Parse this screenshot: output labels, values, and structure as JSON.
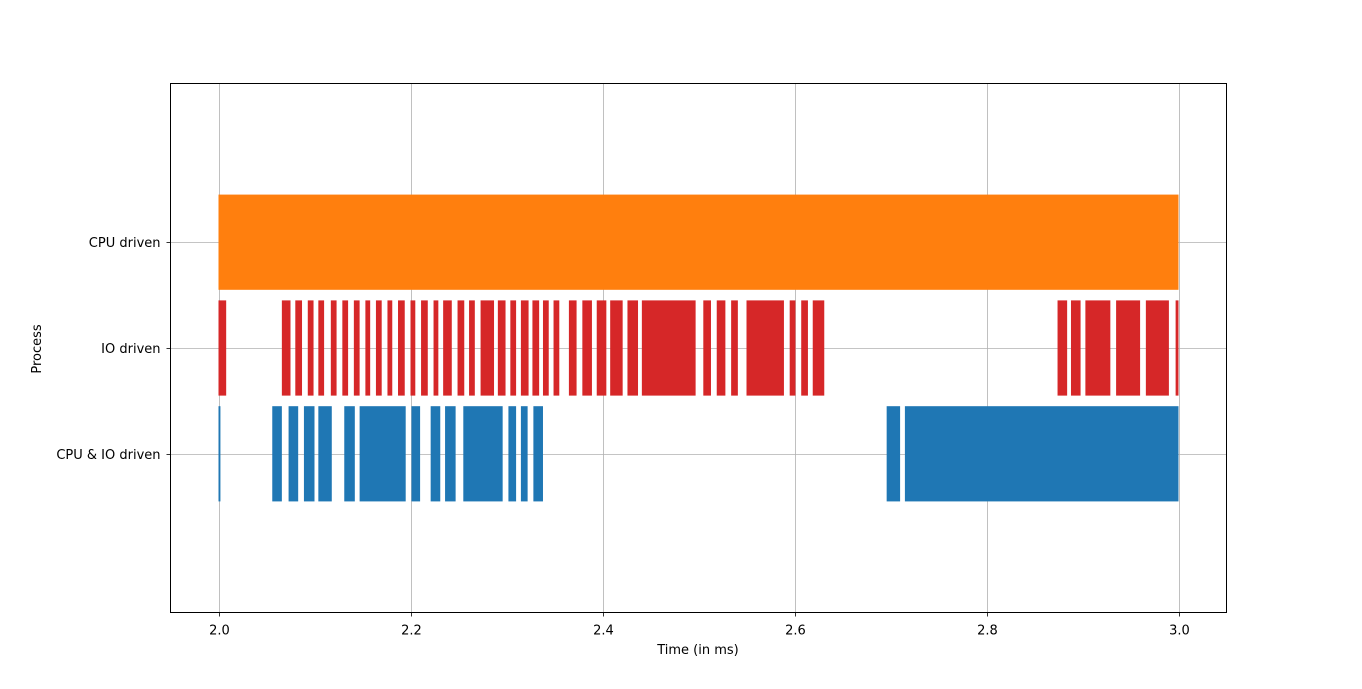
{
  "chart_data": {
    "type": "broken_barh",
    "title": "",
    "xlabel": "Time (in ms)",
    "ylabel": "Process",
    "xlim": [
      1.95,
      3.05
    ],
    "ylim": [
      -1.5,
      3.5
    ],
    "grid": true,
    "xticks": [
      2.0,
      2.2,
      2.4,
      2.6,
      2.8,
      3.0
    ],
    "xtick_labels": [
      "2.0",
      "2.2",
      "2.4",
      "2.6",
      "2.8",
      "3.0"
    ],
    "categories": [
      "CPU driven",
      "IO driven",
      "CPU & IO driven"
    ],
    "series": [
      {
        "category": "CPU driven",
        "row": 2,
        "color": "#ff7f0e",
        "intervals": [
          [
            2.0,
            3.0
          ]
        ]
      },
      {
        "category": "IO driven",
        "row": 1,
        "color": "#d62728",
        "intervals": [
          [
            2.0,
            2.008
          ],
          [
            2.066,
            2.075
          ],
          [
            2.08,
            2.087
          ],
          [
            2.093,
            2.099
          ],
          [
            2.104,
            2.11
          ],
          [
            2.117,
            2.123
          ],
          [
            2.129,
            2.135
          ],
          [
            2.141,
            2.147
          ],
          [
            2.153,
            2.158
          ],
          [
            2.164,
            2.17
          ],
          [
            2.176,
            2.181
          ],
          [
            2.187,
            2.194
          ],
          [
            2.2,
            2.205
          ],
          [
            2.211,
            2.218
          ],
          [
            2.224,
            2.229
          ],
          [
            2.234,
            2.243
          ],
          [
            2.249,
            2.256
          ],
          [
            2.261,
            2.267
          ],
          [
            2.273,
            2.287
          ],
          [
            2.291,
            2.299
          ],
          [
            2.304,
            2.31
          ],
          [
            2.315,
            2.323
          ],
          [
            2.327,
            2.334
          ],
          [
            2.338,
            2.344
          ],
          [
            2.349,
            2.355
          ],
          [
            2.365,
            2.373
          ],
          [
            2.379,
            2.389
          ],
          [
            2.394,
            2.404
          ],
          [
            2.408,
            2.421
          ],
          [
            2.426,
            2.437
          ],
          [
            2.441,
            2.497
          ],
          [
            2.505,
            2.513
          ],
          [
            2.519,
            2.528
          ],
          [
            2.534,
            2.541
          ],
          [
            2.55,
            2.589
          ],
          [
            2.595,
            2.601
          ],
          [
            2.607,
            2.614
          ],
          [
            2.619,
            2.631
          ],
          [
            2.874,
            2.884
          ],
          [
            2.888,
            2.898
          ],
          [
            2.903,
            2.929
          ],
          [
            2.935,
            2.96
          ],
          [
            2.966,
            2.99
          ],
          [
            2.997,
            3.0
          ]
        ]
      },
      {
        "category": "CPU & IO driven",
        "row": 0,
        "color": "#1f77b4",
        "intervals": [
          [
            2.0,
            2.002
          ],
          [
            2.056,
            2.066
          ],
          [
            2.073,
            2.083
          ],
          [
            2.089,
            2.1
          ],
          [
            2.104,
            2.118
          ],
          [
            2.131,
            2.142
          ],
          [
            2.147,
            2.195
          ],
          [
            2.201,
            2.21
          ],
          [
            2.221,
            2.231
          ],
          [
            2.236,
            2.247
          ],
          [
            2.255,
            2.296
          ],
          [
            2.302,
            2.31
          ],
          [
            2.315,
            2.322
          ],
          [
            2.328,
            2.338
          ],
          [
            2.696,
            2.71
          ],
          [
            2.715,
            3.0
          ]
        ]
      }
    ]
  }
}
